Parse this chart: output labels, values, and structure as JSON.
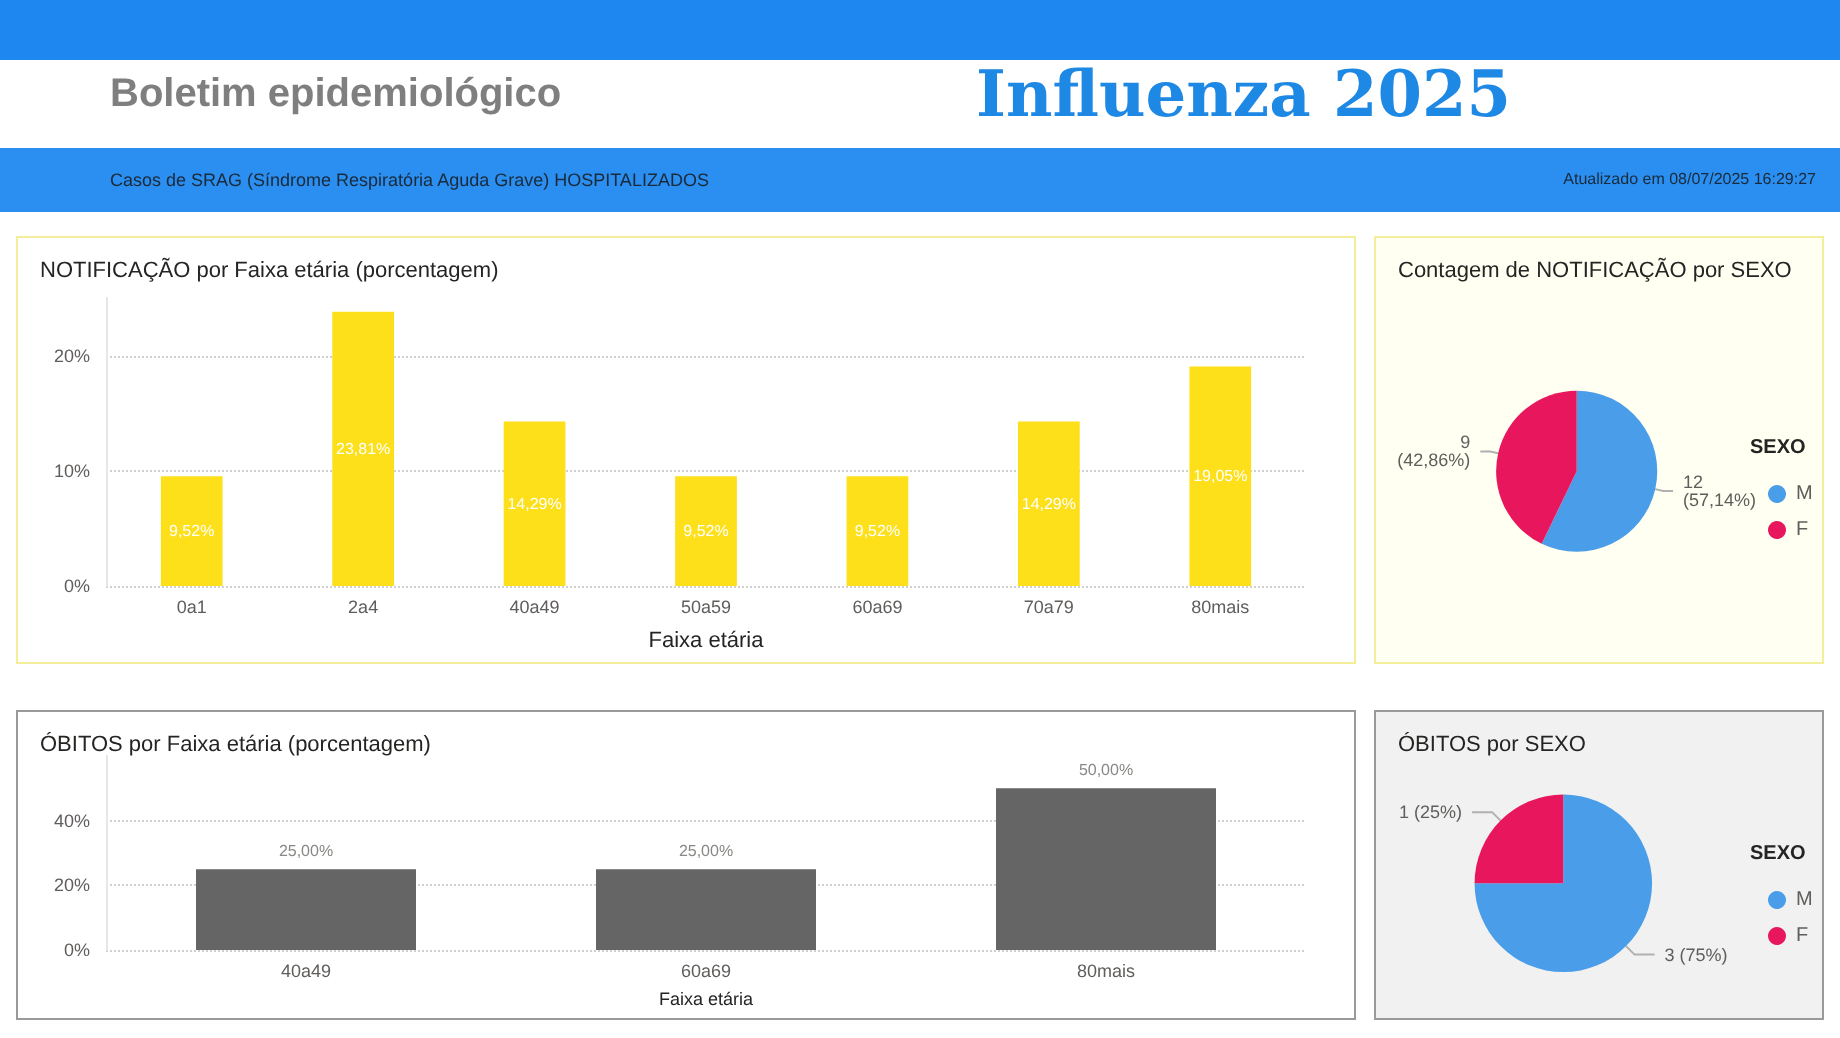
{
  "chart_data": [
    {
      "type": "other",
      "title": "Influenza 2025",
      "subtitle": "Boletim epidemiológico",
      "annotations": [
        "Casos de SRAG (Síndrome Respiratória Aguda Grave) HOSPITALIZADOS",
        "Atualizado em 08/07/2025 16:29:27"
      ]
    },
    {
      "type": "bar",
      "title": "NOTIFICAÇÃO por Faixa etária (porcentagem)",
      "xlabel": "Faixa etária",
      "categories": [
        "0a1",
        "2a4",
        "40a49",
        "50a59",
        "60a69",
        "70a79",
        "80mais"
      ],
      "values": [
        9.52,
        23.81,
        14.29,
        9.52,
        9.52,
        14.29,
        19.05
      ],
      "value_labels": [
        "9,52%",
        "23,81%",
        "14,29%",
        "9,52%",
        "9,52%",
        "14,29%",
        "19,05%"
      ],
      "color": "#fddf1a",
      "ylim": [
        0,
        25
      ],
      "yticks": [
        {
          "value": 0,
          "label": "0%"
        },
        {
          "value": 10,
          "label": "10%"
        },
        {
          "value": 20,
          "label": "20%"
        }
      ],
      "grid": "y"
    },
    {
      "type": "pie",
      "title": "Contagem de NOTIFICAÇÃO por SEXO",
      "legend_title": "SEXO",
      "categories": [
        "M",
        "F"
      ],
      "values": [
        12,
        9
      ],
      "value_labels": [
        "12 (57,14%)",
        "9 (42,86%)"
      ],
      "colors": [
        "#4a9de8",
        "#e8175d"
      ],
      "legend": "right"
    },
    {
      "type": "bar",
      "title": "ÓBITOS por Faixa etária (porcentagem)",
      "xlabel": "Faixa etária",
      "categories": [
        "40a49",
        "60a69",
        "80mais"
      ],
      "values": [
        25,
        25,
        50
      ],
      "value_labels": [
        "25,00%",
        "25,00%",
        "50,00%"
      ],
      "color": "#656565",
      "ylim": [
        0,
        60
      ],
      "yticks": [
        {
          "value": 0,
          "label": "0%"
        },
        {
          "value": 20,
          "label": "20%"
        },
        {
          "value": 40,
          "label": "40%"
        }
      ],
      "grid": "y"
    },
    {
      "type": "pie",
      "title": "ÓBITOS por SEXO",
      "legend_title": "SEXO",
      "categories": [
        "M",
        "F"
      ],
      "values": [
        3,
        1
      ],
      "value_labels": [
        "3 (75%)",
        "1 (25%)"
      ],
      "colors": [
        "#4a9de8",
        "#e8175d"
      ],
      "legend": "right"
    }
  ]
}
